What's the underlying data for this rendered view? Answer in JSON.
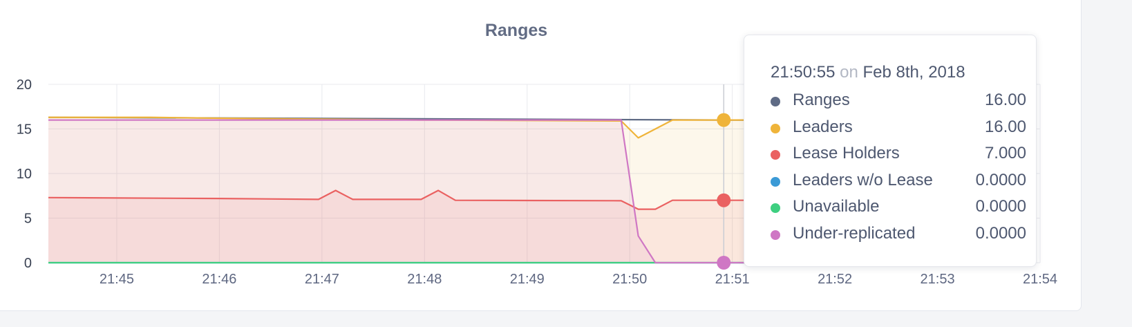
{
  "chart_data": {
    "type": "area",
    "title": "Ranges",
    "ylim": [
      0,
      20
    ],
    "yticks": [
      "0",
      "5",
      "10",
      "15",
      "20"
    ],
    "xticks": [
      "21:45",
      "21:46",
      "21:47",
      "21:48",
      "21:49",
      "21:50",
      "21:51",
      "21:52",
      "21:53",
      "21:54"
    ],
    "xrange": [
      "21:44:20",
      "21:54:00"
    ],
    "grid": true,
    "series": [
      {
        "name": "Ranges",
        "color": "#5f6b85",
        "fill": false,
        "points": [
          [
            "21:44:20",
            16.3
          ],
          [
            "21:50:55",
            16.0
          ],
          [
            "21:51:20",
            16.0
          ]
        ]
      },
      {
        "name": "Leaders",
        "color": "#efb43a",
        "fill": true,
        "points": [
          [
            "21:44:20",
            16.3
          ],
          [
            "21:45:20",
            16.3
          ],
          [
            "21:46:00",
            16.2
          ],
          [
            "21:47:00",
            16.1
          ],
          [
            "21:48:00",
            16.0
          ],
          [
            "21:49:00",
            15.95
          ],
          [
            "21:49:55",
            15.9
          ],
          [
            "21:50:05",
            14.0
          ],
          [
            "21:50:25",
            16.0
          ],
          [
            "21:50:55",
            16.0
          ],
          [
            "21:51:20",
            16.0
          ]
        ]
      },
      {
        "name": "Lease Holders",
        "color": "#ea6161",
        "fill": true,
        "points": [
          [
            "21:44:20",
            7.3
          ],
          [
            "21:46:00",
            7.2
          ],
          [
            "21:46:58",
            7.1
          ],
          [
            "21:47:08",
            8.1
          ],
          [
            "21:47:18",
            7.1
          ],
          [
            "21:47:58",
            7.1
          ],
          [
            "21:48:08",
            8.1
          ],
          [
            "21:48:18",
            7.0
          ],
          [
            "21:49:55",
            6.95
          ],
          [
            "21:50:05",
            6.0
          ],
          [
            "21:50:15",
            6.0
          ],
          [
            "21:50:25",
            7.0
          ],
          [
            "21:50:55",
            7.0
          ],
          [
            "21:51:20",
            7.0
          ]
        ]
      },
      {
        "name": "Leaders w/o Lease",
        "color": "#3b9ad6",
        "fill": false,
        "points": [
          [
            "21:44:20",
            0
          ],
          [
            "21:51:20",
            0
          ]
        ]
      },
      {
        "name": "Unavailable",
        "color": "#3ecf80",
        "fill": false,
        "points": [
          [
            "21:44:20",
            0
          ],
          [
            "21:51:20",
            0
          ]
        ]
      },
      {
        "name": "Under-replicated",
        "color": "#cf77c4",
        "fill": true,
        "points": [
          [
            "21:44:20",
            16.0
          ],
          [
            "21:49:55",
            16.0
          ],
          [
            "21:50:05",
            3.0
          ],
          [
            "21:50:15",
            0
          ],
          [
            "21:50:55",
            0
          ],
          [
            "21:51:20",
            0
          ]
        ]
      }
    ],
    "hover_time": "21:50:55",
    "hover_markers": [
      {
        "series": "Leaders",
        "value": 16.0,
        "color": "#efb43a"
      },
      {
        "series": "Lease Holders",
        "value": 7.0,
        "color": "#ea6161"
      },
      {
        "series": "Under-replicated",
        "value": 0,
        "color": "#cf77c4"
      }
    ]
  },
  "tooltip": {
    "time": "21:50:55",
    "on": "on",
    "date": "Feb 8th, 2018",
    "rows": [
      {
        "name": "Ranges",
        "value": "16.00",
        "color": "#5f6b85"
      },
      {
        "name": "Leaders",
        "value": "16.00",
        "color": "#efb43a"
      },
      {
        "name": "Lease Holders",
        "value": "7.000",
        "color": "#ea6161"
      },
      {
        "name": "Leaders w/o Lease",
        "value": "0.0000",
        "color": "#3b9ad6"
      },
      {
        "name": "Unavailable",
        "value": "0.0000",
        "color": "#3ecf80"
      },
      {
        "name": "Under-replicated",
        "value": "0.0000",
        "color": "#cf77c4"
      }
    ]
  }
}
